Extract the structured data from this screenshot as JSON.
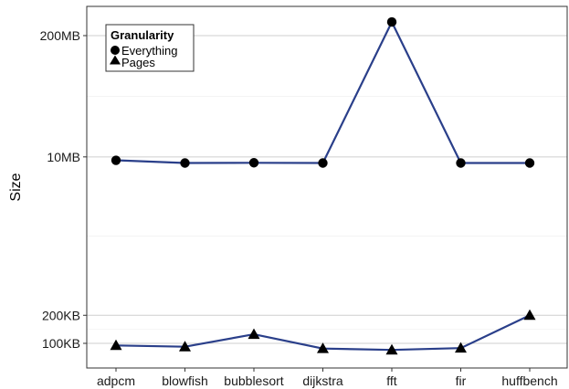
{
  "chart_data": {
    "type": "line",
    "ylabel": "Size",
    "y_scale": "log",
    "grid": true,
    "categories": [
      "adpcm",
      "blowfish",
      "bubblesort",
      "dijkstra",
      "fft",
      "fir",
      "huffbench"
    ],
    "y_ticks": [
      {
        "label": "100KB",
        "value": 100
      },
      {
        "label": "200KB",
        "value": 200
      },
      {
        "label": "10MB",
        "value": 10000
      },
      {
        "label": "200MB",
        "value": 200000
      }
    ],
    "ylim": [
      70,
      300000
    ],
    "legend": {
      "title": "Granularity",
      "placement": "top-left",
      "entries": [
        {
          "label": "Everything",
          "marker": "circle"
        },
        {
          "label": "Pages",
          "marker": "triangle"
        }
      ]
    },
    "series": [
      {
        "name": "Everything",
        "marker": "circle",
        "color": "#2a3f8a",
        "values": [
          9200,
          8600,
          8650,
          8600,
          280000,
          8600,
          8600
        ]
      },
      {
        "name": "Pages",
        "marker": "triangle",
        "color": "#2a3f8a",
        "values": [
          95,
          92,
          125,
          88,
          85,
          89,
          200
        ]
      }
    ]
  }
}
